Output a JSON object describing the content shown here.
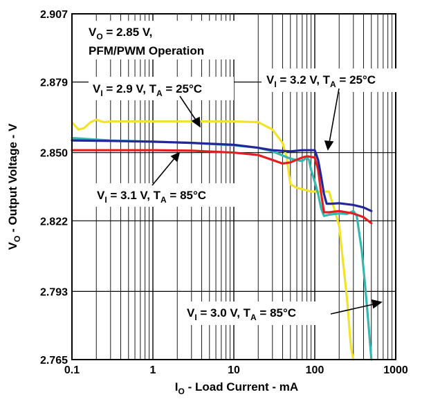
{
  "chart_data": {
    "type": "line",
    "xscale": "log",
    "xlim": [
      0.1,
      1000
    ],
    "ylim": [
      2.765,
      2.907
    ],
    "grid": true,
    "xlabel": {
      "main": "I",
      "sub": "O",
      "rest": " - Load Current - mA"
    },
    "ylabel": {
      "main": "V",
      "sub": "O",
      "rest": " - Output Voltage - V"
    },
    "x_ticks": [
      {
        "value": 0.1,
        "label": "0.1"
      },
      {
        "value": 1,
        "label": "1"
      },
      {
        "value": 10,
        "label": "10"
      },
      {
        "value": 100,
        "label": "100"
      },
      {
        "value": 1000,
        "label": "1000"
      }
    ],
    "y_ticks": [
      {
        "value": 2.765,
        "label": "2.765"
      },
      {
        "value": 2.793,
        "label": "2.793"
      },
      {
        "value": 2.822,
        "label": "2.822"
      },
      {
        "value": 2.85,
        "label": "2.850"
      },
      {
        "value": 2.879,
        "label": "2.879"
      },
      {
        "value": 2.907,
        "label": "2.907"
      }
    ],
    "annotations": {
      "condition_line1": {
        "pre": "V",
        "sub": "O",
        "post": " = 2.85 V,"
      },
      "condition_line2": "PFM/PWM Operation",
      "label_29": {
        "p1": "V",
        "s1": "I",
        "p2": " = 2.9 V, T",
        "s2": "A",
        "p3": " = 25°C"
      },
      "label_32": {
        "p1": "V",
        "s1": "I",
        "p2": " = 3.2 V, T",
        "s2": "A",
        "p3": " = 25°C"
      },
      "label_31": {
        "p1": "V",
        "s1": "I",
        "p2": " = 3.1 V, T",
        "s2": "A",
        "p3": " = 85°C"
      },
      "label_30": {
        "p1": "V",
        "s1": "I",
        "p2": " = 3.0 V, T",
        "s2": "A",
        "p3": " = 85°C"
      }
    },
    "series": [
      {
        "key": "vi29",
        "color": "#f2e32a",
        "points": [
          [
            0.1,
            2.8625
          ],
          [
            0.12,
            2.8595
          ],
          [
            0.14,
            2.86
          ],
          [
            0.17,
            2.8625
          ],
          [
            0.2,
            2.8635
          ],
          [
            0.25,
            2.8625
          ],
          [
            0.3,
            2.8628
          ],
          [
            0.5,
            2.8628
          ],
          [
            1,
            2.8628
          ],
          [
            3,
            2.8628
          ],
          [
            10,
            2.8628
          ],
          [
            20,
            2.8625
          ],
          [
            30,
            2.8595
          ],
          [
            40,
            2.854
          ],
          [
            45,
            2.848
          ],
          [
            50,
            2.837
          ],
          [
            60,
            2.8355
          ],
          [
            70,
            2.835
          ],
          [
            80,
            2.8345
          ],
          [
            90,
            2.834
          ],
          [
            100,
            2.834
          ],
          [
            150,
            2.834
          ],
          [
            200,
            2.82
          ],
          [
            250,
            2.79
          ],
          [
            280,
            2.77
          ],
          [
            300,
            2.765
          ]
        ]
      },
      {
        "key": "vi30",
        "color": "#33b8b0",
        "points": [
          [
            0.1,
            2.856
          ],
          [
            0.3,
            2.855
          ],
          [
            1,
            2.8545
          ],
          [
            3,
            2.854
          ],
          [
            10,
            2.853
          ],
          [
            20,
            2.852
          ],
          [
            30,
            2.8505
          ],
          [
            50,
            2.8475
          ],
          [
            70,
            2.8465
          ],
          [
            80,
            2.848
          ],
          [
            85,
            2.847
          ],
          [
            90,
            2.843
          ],
          [
            100,
            2.838
          ],
          [
            110,
            2.833
          ],
          [
            120,
            2.827
          ],
          [
            130,
            2.824
          ],
          [
            150,
            2.8245
          ],
          [
            200,
            2.825
          ],
          [
            250,
            2.8248
          ],
          [
            300,
            2.826
          ],
          [
            330,
            2.824
          ],
          [
            380,
            2.81
          ],
          [
            420,
            2.795
          ],
          [
            460,
            2.78
          ],
          [
            500,
            2.765
          ]
        ]
      },
      {
        "key": "vi31",
        "color": "#e02020",
        "points": [
          [
            0.1,
            2.851
          ],
          [
            0.3,
            2.851
          ],
          [
            1,
            2.851
          ],
          [
            3,
            2.8508
          ],
          [
            10,
            2.85
          ],
          [
            20,
            2.849
          ],
          [
            30,
            2.847
          ],
          [
            40,
            2.8455
          ],
          [
            50,
            2.846
          ],
          [
            70,
            2.848
          ],
          [
            80,
            2.8485
          ],
          [
            100,
            2.848
          ],
          [
            110,
            2.843
          ],
          [
            120,
            2.833
          ],
          [
            130,
            2.8255
          ],
          [
            150,
            2.8255
          ],
          [
            200,
            2.826
          ],
          [
            300,
            2.825
          ],
          [
            400,
            2.8235
          ],
          [
            500,
            2.821
          ]
        ]
      },
      {
        "key": "vi32",
        "color": "#23279a",
        "points": [
          [
            0.1,
            2.855
          ],
          [
            0.3,
            2.8548
          ],
          [
            1,
            2.8545
          ],
          [
            3,
            2.854
          ],
          [
            10,
            2.8532
          ],
          [
            20,
            2.852
          ],
          [
            30,
            2.851
          ],
          [
            50,
            2.8505
          ],
          [
            70,
            2.851
          ],
          [
            100,
            2.851
          ],
          [
            110,
            2.847
          ],
          [
            120,
            2.84
          ],
          [
            130,
            2.833
          ],
          [
            140,
            2.829
          ],
          [
            160,
            2.829
          ],
          [
            200,
            2.8292
          ],
          [
            300,
            2.8285
          ],
          [
            400,
            2.8275
          ],
          [
            500,
            2.826
          ]
        ]
      }
    ]
  }
}
